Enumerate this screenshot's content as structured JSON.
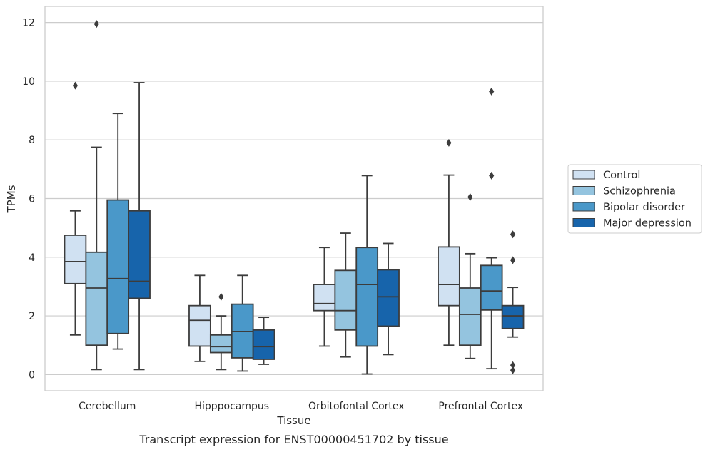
{
  "chart_data": {
    "type": "box",
    "title": "",
    "caption": "Transcript expression for ENST00000451702 by tissue",
    "xlabel": "Tissue",
    "ylabel": "TPMs",
    "ylim": [
      -0.55,
      12.55
    ],
    "yticks": [
      0,
      2,
      4,
      6,
      8,
      10,
      12
    ],
    "grid": "horizontal",
    "legend_position": "right",
    "categories": [
      "Cerebellum",
      "Hipppocampus",
      "Orbitofontal Cortex",
      "Prefrontal Cortex"
    ],
    "series": [
      {
        "name": "Control",
        "color": "#d0e1f2",
        "boxes": [
          {
            "whislo": 1.35,
            "q1": 3.1,
            "med": 3.85,
            "q3": 4.75,
            "whishi": 5.58,
            "fliers": [
              9.85
            ]
          },
          {
            "whislo": 0.45,
            "q1": 0.97,
            "med": 1.85,
            "q3": 2.35,
            "whishi": 3.38,
            "fliers": []
          },
          {
            "whislo": 0.97,
            "q1": 2.18,
            "med": 2.42,
            "q3": 3.07,
            "whishi": 4.33,
            "fliers": []
          },
          {
            "whislo": 1.0,
            "q1": 2.35,
            "med": 3.07,
            "q3": 4.35,
            "whishi": 6.8,
            "fliers": [
              7.9
            ]
          }
        ]
      },
      {
        "name": "Schizophrenia",
        "color": "#94c4df",
        "boxes": [
          {
            "whislo": 0.17,
            "q1": 1.0,
            "med": 2.95,
            "q3": 4.17,
            "whishi": 7.75,
            "fliers": [
              11.95
            ]
          },
          {
            "whislo": 0.17,
            "q1": 0.75,
            "med": 0.95,
            "q3": 1.35,
            "whishi": 2.0,
            "fliers": [
              2.65
            ]
          },
          {
            "whislo": 0.6,
            "q1": 1.52,
            "med": 2.18,
            "q3": 3.55,
            "whishi": 4.82,
            "fliers": []
          },
          {
            "whislo": 0.55,
            "q1": 1.0,
            "med": 2.05,
            "q3": 2.95,
            "whishi": 4.12,
            "fliers": [
              6.05
            ]
          }
        ]
      },
      {
        "name": "Bipolar disorder",
        "color": "#4a98c9",
        "boxes": [
          {
            "whislo": 0.87,
            "q1": 1.4,
            "med": 3.27,
            "q3": 5.95,
            "whishi": 8.9,
            "fliers": []
          },
          {
            "whislo": 0.12,
            "q1": 0.57,
            "med": 1.47,
            "q3": 2.4,
            "whishi": 3.38,
            "fliers": []
          },
          {
            "whislo": 0.02,
            "q1": 0.97,
            "med": 3.07,
            "q3": 4.33,
            "whishi": 6.78,
            "fliers": []
          },
          {
            "whislo": 0.2,
            "q1": 2.2,
            "med": 2.85,
            "q3": 3.72,
            "whishi": 3.98,
            "fliers": [
              6.78,
              9.65
            ]
          }
        ]
      },
      {
        "name": "Major depression",
        "color": "#1764ab",
        "boxes": [
          {
            "whislo": 0.17,
            "q1": 2.6,
            "med": 3.18,
            "q3": 5.58,
            "whishi": 9.95,
            "fliers": []
          },
          {
            "whislo": 0.35,
            "q1": 0.52,
            "med": 0.95,
            "q3": 1.52,
            "whishi": 1.95,
            "fliers": []
          },
          {
            "whislo": 0.68,
            "q1": 1.65,
            "med": 2.65,
            "q3": 3.57,
            "whishi": 4.47,
            "fliers": []
          },
          {
            "whislo": 1.28,
            "q1": 1.57,
            "med": 2.0,
            "q3": 2.35,
            "whishi": 2.97,
            "fliers": [
              0.15,
              0.32,
              3.9,
              4.78
            ]
          }
        ]
      }
    ]
  }
}
